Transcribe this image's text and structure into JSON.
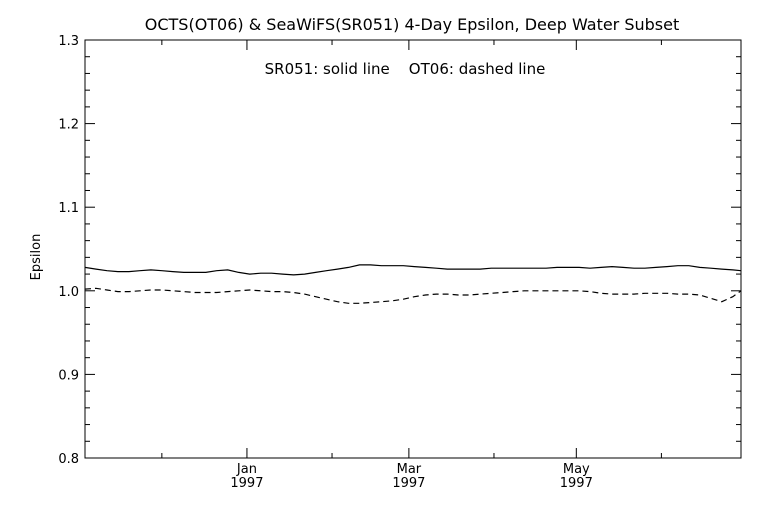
{
  "chart_data": {
    "type": "line",
    "title": "OCTS(OT06) & SeaWiFS(SR051) 4-Day Epsilon, Deep Water Subset",
    "annotation": "SR051: solid line    OT06: dashed line",
    "xlabel": "",
    "ylabel": "Epsilon",
    "ylim": [
      0.8,
      1.3
    ],
    "yticks": [
      "0.8",
      "0.9",
      "1.0",
      "1.1",
      "1.2",
      "1.3"
    ],
    "xlim": [
      "1996-11-03",
      "1997-06-30"
    ],
    "xticks": [
      {
        "date": "1997-01-01",
        "month": "Jan",
        "year": "1997"
      },
      {
        "date": "1997-03-01",
        "month": "Mar",
        "year": "1997"
      },
      {
        "date": "1997-05-01",
        "month": "May",
        "year": "1997"
      }
    ],
    "grid": false,
    "x": [
      "1996-11-03",
      "1996-11-07",
      "1996-11-11",
      "1996-11-15",
      "1996-11-19",
      "1996-11-23",
      "1996-11-27",
      "1996-12-01",
      "1996-12-05",
      "1996-12-09",
      "1996-12-13",
      "1996-12-17",
      "1996-12-21",
      "1996-12-25",
      "1996-12-29",
      "1997-01-02",
      "1997-01-06",
      "1997-01-10",
      "1997-01-14",
      "1997-01-18",
      "1997-01-22",
      "1997-01-26",
      "1997-01-30",
      "1997-02-03",
      "1997-02-07",
      "1997-02-11",
      "1997-02-15",
      "1997-02-19",
      "1997-02-23",
      "1997-02-27",
      "1997-03-03",
      "1997-03-07",
      "1997-03-11",
      "1997-03-15",
      "1997-03-19",
      "1997-03-23",
      "1997-03-27",
      "1997-03-31",
      "1997-04-04",
      "1997-04-08",
      "1997-04-12",
      "1997-04-16",
      "1997-04-20",
      "1997-04-24",
      "1997-04-28",
      "1997-05-02",
      "1997-05-06",
      "1997-05-10",
      "1997-05-14",
      "1997-05-18",
      "1997-05-22",
      "1997-05-26",
      "1997-05-30",
      "1997-06-03",
      "1997-06-07",
      "1997-06-11",
      "1997-06-15",
      "1997-06-19",
      "1997-06-23",
      "1997-06-27",
      "1997-06-30"
    ],
    "series": [
      {
        "name": "SR051",
        "style": "solid",
        "color": "#000000",
        "values": [
          1.028,
          1.026,
          1.024,
          1.023,
          1.023,
          1.024,
          1.025,
          1.024,
          1.023,
          1.022,
          1.022,
          1.022,
          1.024,
          1.025,
          1.022,
          1.02,
          1.021,
          1.021,
          1.02,
          1.019,
          1.02,
          1.022,
          1.024,
          1.026,
          1.028,
          1.031,
          1.031,
          1.03,
          1.03,
          1.03,
          1.029,
          1.028,
          1.027,
          1.026,
          1.026,
          1.026,
          1.026,
          1.027,
          1.027,
          1.027,
          1.027,
          1.027,
          1.027,
          1.028,
          1.028,
          1.028,
          1.027,
          1.028,
          1.029,
          1.028,
          1.027,
          1.027,
          1.028,
          1.029,
          1.03,
          1.03,
          1.028,
          1.027,
          1.026,
          1.025,
          1.024
        ]
      },
      {
        "name": "OT06",
        "style": "dashed",
        "color": "#000000",
        "values": [
          1.002,
          1.003,
          1.001,
          0.999,
          0.999,
          1.0,
          1.001,
          1.001,
          1.0,
          0.999,
          0.998,
          0.998,
          0.998,
          0.999,
          1.0,
          1.001,
          1.0,
          0.999,
          0.999,
          0.998,
          0.996,
          0.993,
          0.99,
          0.987,
          0.985,
          0.985,
          0.986,
          0.987,
          0.988,
          0.99,
          0.993,
          0.995,
          0.996,
          0.996,
          0.995,
          0.995,
          0.996,
          0.997,
          0.998,
          0.999,
          1.0,
          1.0,
          1.0,
          1.0,
          1.0,
          1.0,
          0.999,
          0.997,
          0.996,
          0.996,
          0.996,
          0.997,
          0.997,
          0.997,
          0.996,
          0.996,
          0.995,
          0.991,
          0.987,
          0.993,
          1.0
        ]
      }
    ]
  }
}
